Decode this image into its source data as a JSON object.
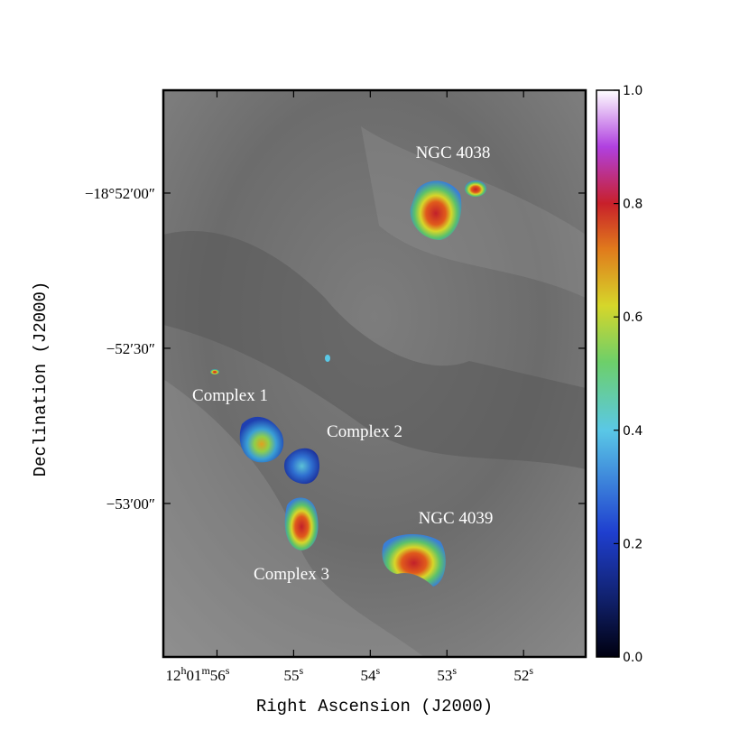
{
  "chart_data": {
    "type": "image",
    "xlabel": "Right Ascension (J2000)",
    "ylabel": "Declination (J2000)",
    "xlim": [
      56.7,
      51.19
    ],
    "xticks": [
      {
        "value": 56,
        "label": "12h01m56s"
      },
      {
        "value": 55,
        "label": "55s"
      },
      {
        "value": 54,
        "label": "54s"
      },
      {
        "value": 53,
        "label": "53s"
      },
      {
        "value": 52,
        "label": "52s"
      }
    ],
    "ylim": [
      -18.86115,
      -18.89157
    ],
    "yticks": [
      {
        "value": -18.86667,
        "label": "−18°52′00″"
      },
      {
        "value": -18.875,
        "label": "−52′30″"
      },
      {
        "value": -18.88333,
        "label": "−53′00″"
      }
    ],
    "colorbar": {
      "lim": [
        0,
        1
      ],
      "ticks": [
        {
          "value": 0,
          "label": "0.0"
        },
        0.2,
        0.4,
        0.6,
        0.8,
        {
          "value": 1,
          "label": "1.0"
        }
      ]
    },
    "annotations": [
      "NGC 4038",
      "Complex 1",
      "Complex 2",
      "Complex 3",
      "NGC 4039"
    ]
  }
}
